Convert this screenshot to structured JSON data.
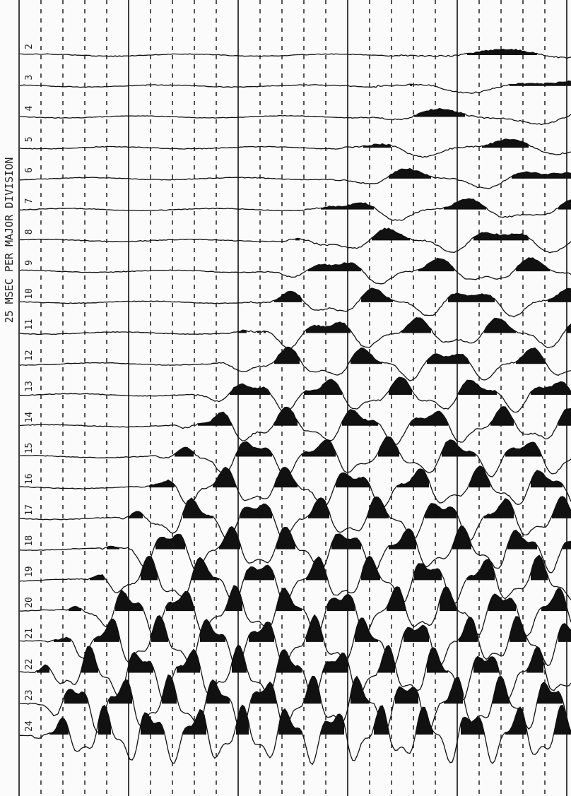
{
  "record": {
    "title": "25 MSEC PER MAJOR DIVISION",
    "trace_labels": [
      "2",
      "3",
      "4",
      "5",
      "6",
      "7",
      "8",
      "9",
      "10",
      "11",
      "12",
      "13",
      "14",
      "15",
      "16",
      "17",
      "18",
      "19",
      "20",
      "21",
      "22",
      "23",
      "24"
    ]
  }
}
